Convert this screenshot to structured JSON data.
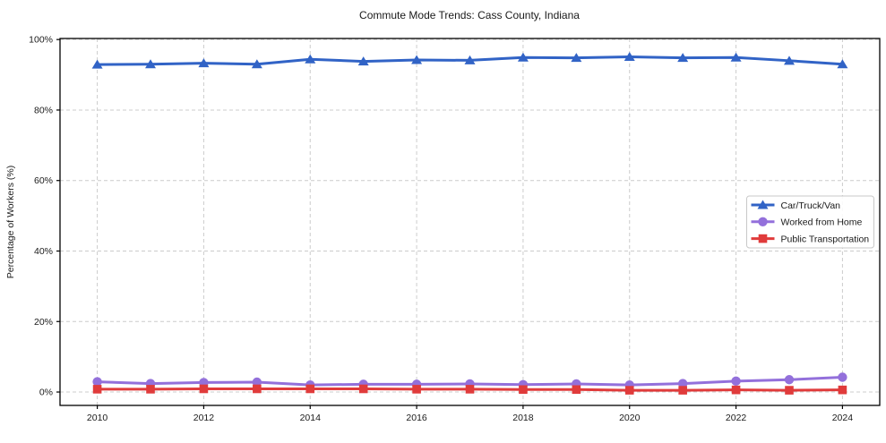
{
  "chart_data": {
    "type": "line",
    "title": "Commute Mode Trends: Cass County, Indiana",
    "xlabel": "",
    "ylabel": "Percentage of Workers (%)",
    "x": [
      2010,
      2011,
      2012,
      2013,
      2014,
      2015,
      2016,
      2017,
      2018,
      2019,
      2020,
      2021,
      2022,
      2023,
      2024
    ],
    "series": [
      {
        "name": "Car/Truck/Van",
        "color": "#3163c6",
        "marker": "triangle",
        "values": [
          92.9,
          93.0,
          93.3,
          93.0,
          94.4,
          93.8,
          94.2,
          94.1,
          94.9,
          94.8,
          95.1,
          94.8,
          94.9,
          94.0,
          93.0
        ]
      },
      {
        "name": "Worked from Home",
        "color": "#9370db",
        "marker": "circle",
        "values": [
          2.9,
          2.4,
          2.7,
          2.8,
          2.0,
          2.2,
          2.2,
          2.3,
          2.1,
          2.3,
          2.0,
          2.4,
          3.1,
          3.5,
          4.2
        ]
      },
      {
        "name": "Public Transportation",
        "color": "#e03b3b",
        "marker": "square",
        "values": [
          0.8,
          0.8,
          0.9,
          0.9,
          0.9,
          0.9,
          0.8,
          0.8,
          0.7,
          0.7,
          0.5,
          0.5,
          0.6,
          0.5,
          0.6
        ]
      }
    ],
    "xlim": [
      2009.3,
      2024.7
    ],
    "ylim": [
      -3.8,
      100.3
    ],
    "xticks": {
      "values": [
        2010,
        2012,
        2014,
        2016,
        2018,
        2020,
        2022,
        2024
      ],
      "labels": [
        "2010",
        "2012",
        "2014",
        "2016",
        "2018",
        "2020",
        "2022",
        "2024"
      ]
    },
    "yticks": {
      "values": [
        0,
        20,
        40,
        60,
        80,
        100
      ],
      "labels": [
        "0%",
        "20%",
        "40%",
        "60%",
        "80%",
        "100%"
      ]
    },
    "grid": "dashed",
    "grid_color": "#cccccc",
    "frame_color": "#000000",
    "legend": {
      "position": "center-right",
      "border_color": "#c8c8c8",
      "labels": [
        "Car/Truck/Van",
        "Worked from Home",
        "Public Transportation"
      ]
    }
  }
}
